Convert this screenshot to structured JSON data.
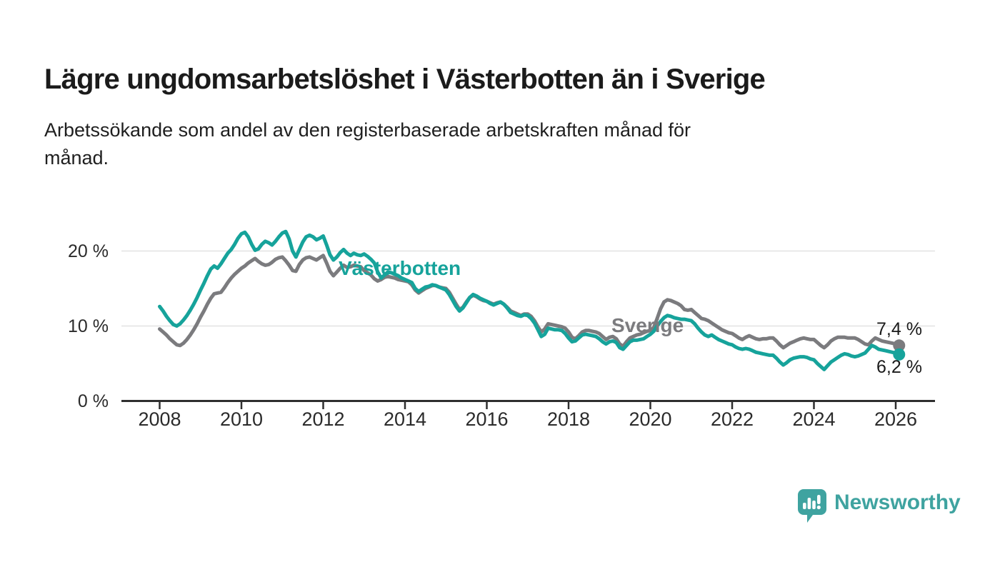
{
  "page": {
    "title": "Lägre ungdomsarbetslöshet i Västerbotten än i Sverige",
    "subtitle_lines": [
      "Arbetssökande som andel av den registerbaserade arbetskraften månad för",
      "månad."
    ]
  },
  "branding": {
    "name": "Newsworthy",
    "logo_icon": "speech-bubble-bar-chart",
    "color": "#3FA3A0"
  },
  "chart_data": {
    "type": "line",
    "x_unit": "month",
    "x_start": "2008-01",
    "x_end": "2026-02",
    "ylim": [
      0,
      24
    ],
    "grid": "horizontal",
    "legend_position": "inline-labels",
    "y_ticks": [
      {
        "value": 0,
        "label": "0 %"
      },
      {
        "value": 10,
        "label": "10 %"
      },
      {
        "value": 20,
        "label": "20 %"
      }
    ],
    "x_ticks": [
      {
        "year": 2008,
        "label": "2008"
      },
      {
        "year": 2010,
        "label": "2010"
      },
      {
        "year": 2012,
        "label": "2012"
      },
      {
        "year": 2014,
        "label": "2014"
      },
      {
        "year": 2016,
        "label": "2016"
      },
      {
        "year": 2018,
        "label": "2018"
      },
      {
        "year": 2020,
        "label": "2020"
      },
      {
        "year": 2022,
        "label": "2022"
      },
      {
        "year": 2024,
        "label": "2024"
      },
      {
        "year": 2026,
        "label": "2026"
      }
    ],
    "series": [
      {
        "name": "Sverige",
        "color": "#7B7B7E",
        "end_value": 7.4,
        "end_label": "7,4 %",
        "values": [
          9.6,
          9.2,
          8.8,
          8.3,
          7.9,
          7.5,
          7.4,
          7.7,
          8.2,
          8.8,
          9.5,
          10.3,
          11.2,
          12.0,
          12.9,
          13.7,
          14.3,
          14.4,
          14.5,
          15.1,
          15.8,
          16.4,
          16.9,
          17.3,
          17.7,
          18.0,
          18.4,
          18.7,
          19.0,
          18.6,
          18.3,
          18.1,
          18.2,
          18.5,
          18.9,
          19.1,
          19.2,
          18.7,
          18.1,
          17.4,
          17.3,
          18.2,
          18.8,
          19.1,
          19.2,
          19.0,
          18.8,
          19.1,
          19.4,
          18.4,
          17.3,
          16.7,
          17.2,
          17.7,
          18.1,
          17.8,
          17.9,
          18.1,
          18.0,
          17.9,
          17.4,
          17.1,
          16.8,
          16.3,
          16.0,
          16.2,
          16.5,
          16.6,
          16.5,
          16.4,
          16.2,
          16.1,
          16.0,
          15.9,
          15.5,
          14.8,
          14.4,
          14.7,
          15.0,
          15.2,
          15.4,
          15.4,
          15.2,
          15.1,
          15.0,
          14.5,
          13.7,
          12.9,
          12.2,
          12.5,
          13.2,
          13.8,
          14.1,
          13.9,
          13.6,
          13.4,
          13.3,
          13.1,
          12.9,
          13.1,
          13.2,
          12.9,
          12.5,
          12.0,
          11.8,
          11.6,
          11.4,
          11.6,
          11.6,
          11.3,
          10.7,
          9.9,
          9.2,
          9.6,
          10.3,
          10.2,
          10.1,
          10.0,
          9.9,
          9.7,
          9.2,
          8.5,
          8.3,
          8.7,
          9.2,
          9.4,
          9.4,
          9.3,
          9.2,
          9.0,
          8.6,
          8.2,
          8.5,
          8.6,
          8.3,
          7.6,
          7.3,
          7.9,
          8.4,
          8.6,
          8.8,
          8.9,
          9.1,
          9.3,
          9.4,
          9.8,
          11.0,
          12.3,
          13.2,
          13.5,
          13.4,
          13.2,
          13.0,
          12.7,
          12.2,
          12.1,
          12.2,
          11.8,
          11.4,
          11.0,
          10.9,
          10.7,
          10.4,
          10.1,
          9.8,
          9.5,
          9.3,
          9.1,
          9.0,
          8.7,
          8.4,
          8.2,
          8.5,
          8.7,
          8.5,
          8.3,
          8.2,
          8.3,
          8.3,
          8.4,
          8.4,
          8.0,
          7.5,
          7.1,
          7.4,
          7.7,
          7.9,
          8.1,
          8.3,
          8.4,
          8.3,
          8.2,
          8.2,
          7.8,
          7.4,
          7.1,
          7.5,
          8.0,
          8.3,
          8.5,
          8.5,
          8.5,
          8.4,
          8.4,
          8.4,
          8.2,
          7.9,
          7.6,
          7.5,
          8.0,
          8.4,
          8.2,
          8.0,
          7.9,
          7.8,
          7.7,
          7.6,
          7.4
        ]
      },
      {
        "name": "Västerbotten",
        "color": "#16A39B",
        "end_value": 6.2,
        "end_label": "6,2 %",
        "values": [
          12.6,
          12.0,
          11.3,
          10.7,
          10.2,
          10.0,
          10.3,
          10.8,
          11.4,
          12.1,
          12.9,
          13.8,
          14.8,
          15.7,
          16.7,
          17.6,
          18.0,
          17.7,
          18.3,
          19.0,
          19.7,
          20.2,
          20.9,
          21.7,
          22.3,
          22.5,
          21.9,
          20.9,
          20.1,
          20.3,
          20.9,
          21.3,
          21.1,
          20.8,
          21.3,
          21.9,
          22.4,
          22.6,
          21.6,
          20.0,
          19.2,
          20.2,
          21.2,
          21.9,
          22.1,
          21.9,
          21.5,
          21.7,
          22.0,
          20.8,
          19.5,
          18.8,
          19.2,
          19.8,
          20.2,
          19.7,
          19.4,
          19.7,
          19.5,
          19.4,
          19.6,
          19.3,
          18.9,
          18.4,
          17.2,
          16.4,
          16.8,
          17.2,
          17.1,
          16.9,
          16.7,
          16.4,
          16.2,
          16.0,
          15.8,
          15.0,
          14.6,
          14.9,
          15.2,
          15.3,
          15.5,
          15.4,
          15.2,
          15.0,
          14.8,
          14.2,
          13.4,
          12.6,
          12.0,
          12.4,
          13.1,
          13.8,
          14.2,
          14.0,
          13.7,
          13.5,
          13.3,
          13.0,
          12.8,
          13.0,
          13.2,
          12.9,
          12.4,
          11.8,
          11.6,
          11.4,
          11.3,
          11.5,
          11.4,
          11.0,
          10.4,
          9.5,
          8.6,
          8.9,
          9.7,
          9.6,
          9.5,
          9.5,
          9.4,
          9.0,
          8.4,
          7.9,
          8.0,
          8.4,
          8.8,
          8.9,
          8.8,
          8.7,
          8.6,
          8.3,
          7.9,
          7.6,
          7.9,
          8.0,
          7.8,
          7.1,
          6.9,
          7.4,
          7.9,
          8.1,
          8.1,
          8.2,
          8.3,
          8.6,
          8.9,
          9.3,
          10.0,
          10.6,
          11.1,
          11.4,
          11.3,
          11.1,
          11.0,
          10.9,
          10.9,
          10.8,
          10.7,
          10.3,
          9.7,
          9.2,
          8.8,
          8.6,
          8.8,
          8.5,
          8.2,
          8.0,
          7.8,
          7.6,
          7.5,
          7.2,
          7.0,
          6.9,
          7.0,
          6.9,
          6.7,
          6.5,
          6.4,
          6.3,
          6.2,
          6.1,
          6.1,
          5.7,
          5.2,
          4.8,
          5.1,
          5.5,
          5.7,
          5.8,
          5.9,
          5.9,
          5.8,
          5.6,
          5.5,
          5.0,
          4.6,
          4.2,
          4.7,
          5.2,
          5.5,
          5.8,
          6.1,
          6.3,
          6.2,
          6.0,
          5.9,
          6.0,
          6.2,
          6.4,
          6.9,
          7.4,
          7.2,
          6.9,
          6.8,
          6.7,
          6.6,
          6.5,
          6.4,
          6.2
        ]
      }
    ]
  }
}
